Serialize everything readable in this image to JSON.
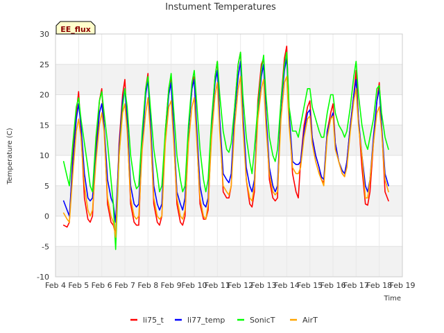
{
  "chart_data": {
    "type": "line",
    "title": "Instument Temperatures",
    "xlabel": "Time",
    "ylabel": "Temperature (C)",
    "badge": "EE_flux",
    "xlim": [
      4,
      19
    ],
    "ylim": [
      -10,
      30
    ],
    "x_ticks": [
      4,
      5,
      6,
      7,
      8,
      9,
      10,
      11,
      12,
      13,
      14,
      15,
      16,
      17,
      18,
      19
    ],
    "x_tick_labels": [
      "Feb 4",
      "Feb 5",
      "Feb 6",
      "Feb 7",
      "Feb 8",
      "Feb 9",
      "Feb 10",
      "Feb 11",
      "Feb 12",
      "Feb 13",
      "Feb 14",
      "Feb 15",
      "Feb 16",
      "Feb 17",
      "Feb 18",
      "Feb 19"
    ],
    "y_ticks": [
      -10,
      -5,
      0,
      5,
      10,
      15,
      20,
      25,
      30
    ],
    "y_tick_labels": [
      "-10",
      "-5",
      "0",
      "5",
      "10",
      "15",
      "20",
      "25",
      "30"
    ],
    "grid": true,
    "legend_position": "bottom",
    "series": [
      {
        "name": "li75_t",
        "color": "#ff0000",
        "x": [
          4.35,
          4.5,
          4.6,
          4.75,
          4.9,
          5.0,
          5.1,
          5.25,
          5.4,
          5.5,
          5.6,
          5.75,
          5.9,
          6.0,
          6.1,
          6.25,
          6.4,
          6.5,
          6.6,
          6.75,
          6.9,
          7.0,
          7.1,
          7.25,
          7.4,
          7.5,
          7.6,
          7.75,
          7.9,
          8.0,
          8.1,
          8.25,
          8.4,
          8.5,
          8.6,
          8.75,
          8.9,
          9.0,
          9.1,
          9.25,
          9.4,
          9.5,
          9.6,
          9.75,
          9.9,
          10.0,
          10.1,
          10.25,
          10.4,
          10.5,
          10.6,
          10.75,
          10.9,
          11.0,
          11.1,
          11.25,
          11.4,
          11.5,
          11.6,
          11.75,
          11.9,
          12.0,
          12.1,
          12.25,
          12.4,
          12.5,
          12.6,
          12.75,
          12.9,
          13.0,
          13.1,
          13.25,
          13.4,
          13.5,
          13.6,
          13.75,
          13.9,
          14.0,
          14.1,
          14.25,
          14.4,
          14.5,
          14.6,
          14.75,
          14.9,
          15.0,
          15.1,
          15.25,
          15.4,
          15.5,
          15.6,
          15.75,
          15.9,
          16.0,
          16.1,
          16.25,
          16.4,
          16.5,
          16.6,
          16.75,
          16.9,
          17.0,
          17.1,
          17.25,
          17.4,
          17.5,
          17.6,
          17.75,
          17.9,
          18.0,
          18.1,
          18.25,
          18.4
        ],
        "y": [
          -1.5,
          -1.8,
          -1,
          10,
          17,
          20.5,
          14,
          3,
          -0.5,
          -1,
          0,
          11,
          19,
          21,
          15,
          2,
          -1,
          -1.5,
          -3,
          12,
          20,
          22.5,
          15,
          2,
          -1,
          -1.5,
          -1.5,
          13,
          21,
          23.5,
          15,
          2,
          -1,
          -1.5,
          0,
          14,
          21,
          23,
          14,
          2,
          -1,
          -1.5,
          0,
          14,
          21,
          23,
          14,
          2,
          -0.5,
          -0.5,
          1,
          15,
          23,
          25.5,
          16,
          4,
          3,
          3,
          5,
          18,
          25,
          27,
          17,
          6,
          2,
          1.5,
          4,
          19,
          25,
          26,
          17,
          6,
          3,
          2.5,
          3,
          19,
          26,
          28,
          17,
          7,
          4,
          3,
          9,
          15,
          18,
          19,
          13,
          10,
          8,
          6,
          5.5,
          14,
          17,
          18.5,
          12,
          9,
          7,
          6.5,
          9,
          15,
          20,
          24,
          16,
          8,
          2,
          1.8,
          4,
          12,
          19,
          22,
          15,
          4,
          2.5
        ]
      },
      {
        "name": "li77_temp",
        "color": "#0000ff",
        "x": [
          4.35,
          4.5,
          4.6,
          4.75,
          4.9,
          5.0,
          5.1,
          5.25,
          5.4,
          5.5,
          5.6,
          5.75,
          5.9,
          6.0,
          6.1,
          6.25,
          6.4,
          6.5,
          6.6,
          6.75,
          6.9,
          7.0,
          7.1,
          7.25,
          7.4,
          7.5,
          7.6,
          7.75,
          7.9,
          8.0,
          8.1,
          8.25,
          8.4,
          8.5,
          8.6,
          8.75,
          8.9,
          9.0,
          9.1,
          9.25,
          9.4,
          9.5,
          9.6,
          9.75,
          9.9,
          10.0,
          10.1,
          10.25,
          10.4,
          10.5,
          10.6,
          10.75,
          10.9,
          11.0,
          11.1,
          11.25,
          11.4,
          11.5,
          11.6,
          11.75,
          11.9,
          12.0,
          12.1,
          12.25,
          12.4,
          12.5,
          12.6,
          12.75,
          12.9,
          13.0,
          13.1,
          13.25,
          13.4,
          13.5,
          13.6,
          13.75,
          13.9,
          14.0,
          14.1,
          14.25,
          14.4,
          14.5,
          14.6,
          14.75,
          14.9,
          15.0,
          15.1,
          15.25,
          15.4,
          15.5,
          15.6,
          15.75,
          15.9,
          16.0,
          16.1,
          16.25,
          16.4,
          16.5,
          16.6,
          16.75,
          16.9,
          17.0,
          17.1,
          17.25,
          17.4,
          17.5,
          17.6,
          17.75,
          17.9,
          18.0,
          18.1,
          18.25,
          18.4
        ],
        "y": [
          2.5,
          1,
          0,
          9,
          16,
          18.5,
          15,
          7,
          3,
          2.5,
          3,
          10,
          17,
          18.5,
          15,
          6,
          3,
          2,
          -1,
          11,
          19,
          21,
          16,
          5,
          2,
          1.5,
          2,
          12,
          20,
          22.5,
          16,
          5,
          2,
          1,
          2,
          13,
          20,
          22,
          15,
          4,
          2,
          1,
          3,
          14,
          21,
          22.5,
          15,
          5,
          2,
          1.5,
          3,
          15,
          22,
          24,
          16,
          7,
          6,
          5.5,
          7,
          17,
          23,
          25.5,
          17,
          8,
          5,
          4,
          6,
          17,
          23,
          25,
          17,
          8,
          5,
          4,
          5,
          18,
          24,
          26,
          17,
          9,
          8.5,
          8.5,
          9,
          14,
          17,
          17.5,
          13,
          10,
          8,
          6.5,
          6,
          14,
          16,
          17,
          12,
          9,
          7.5,
          7,
          9,
          15,
          20,
          22.5,
          16,
          10,
          5,
          4,
          6,
          13,
          19,
          21,
          15,
          7,
          5
        ]
      },
      {
        "name": "SonicT",
        "color": "#00ff00",
        "x": [
          4.35,
          4.5,
          4.6,
          4.75,
          4.9,
          5.0,
          5.1,
          5.25,
          5.4,
          5.5,
          5.6,
          5.75,
          5.9,
          6.0,
          6.1,
          6.25,
          6.4,
          6.5,
          6.6,
          6.75,
          6.9,
          7.0,
          7.1,
          7.25,
          7.4,
          7.5,
          7.6,
          7.75,
          7.9,
          8.0,
          8.1,
          8.25,
          8.4,
          8.5,
          8.6,
          8.75,
          8.9,
          9.0,
          9.1,
          9.25,
          9.4,
          9.5,
          9.6,
          9.75,
          9.9,
          10.0,
          10.1,
          10.25,
          10.4,
          10.5,
          10.6,
          10.75,
          10.9,
          11.0,
          11.1,
          11.25,
          11.4,
          11.5,
          11.6,
          11.75,
          11.9,
          12.0,
          12.1,
          12.25,
          12.4,
          12.5,
          12.6,
          12.75,
          12.9,
          13.0,
          13.1,
          13.25,
          13.4,
          13.5,
          13.6,
          13.75,
          13.9,
          14.0,
          14.1,
          14.25,
          14.4,
          14.5,
          14.6,
          14.75,
          14.9,
          15.0,
          15.1,
          15.25,
          15.4,
          15.5,
          15.6,
          15.75,
          15.9,
          16.0,
          16.1,
          16.25,
          16.4,
          16.5,
          16.6,
          16.75,
          16.9,
          17.0,
          17.1,
          17.25,
          17.4,
          17.5,
          17.6,
          17.75,
          17.9,
          18.0,
          18.1,
          18.25,
          18.4
        ],
        "y": [
          9,
          6.5,
          5,
          12,
          18,
          19.5,
          16,
          12,
          8,
          5,
          4,
          13,
          19,
          20.5,
          17,
          12,
          6,
          2,
          -5.5,
          10,
          18,
          21,
          18,
          10,
          6,
          4.5,
          5,
          14,
          21,
          23,
          18,
          11,
          7,
          4,
          5,
          14,
          21,
          23.5,
          18,
          10,
          6,
          4,
          5,
          15,
          22,
          24,
          19,
          11,
          6,
          4,
          6,
          16,
          23,
          25.5,
          20,
          14,
          11,
          10.5,
          12,
          18,
          25,
          27,
          20,
          13,
          9,
          7,
          11,
          18,
          24,
          26.5,
          20,
          13,
          10,
          9,
          11,
          19,
          25,
          27,
          18,
          14,
          14,
          13,
          15,
          18,
          21,
          21,
          18,
          16,
          14,
          13,
          13,
          17,
          20,
          20,
          17,
          15,
          14,
          13,
          14,
          18,
          23,
          25.5,
          20,
          15,
          12,
          11,
          13,
          16,
          21,
          21.5,
          17,
          13,
          11
        ]
      },
      {
        "name": "AirT",
        "color": "#ffa500",
        "x": [
          4.35,
          4.5,
          4.6,
          4.75,
          4.9,
          5.0,
          5.1,
          5.25,
          5.4,
          5.5,
          5.6,
          5.75,
          5.9,
          6.0,
          6.1,
          6.25,
          6.4,
          6.5,
          6.6,
          6.75,
          6.9,
          7.0,
          7.1,
          7.25,
          7.4,
          7.5,
          7.6,
          7.75,
          7.9,
          8.0,
          8.1,
          8.25,
          8.4,
          8.5,
          8.6,
          8.75,
          8.9,
          9.0,
          9.1,
          9.25,
          9.4,
          9.5,
          9.6,
          9.75,
          9.9,
          10.0,
          10.1,
          10.25,
          10.4,
          10.5,
          10.6,
          10.75,
          10.9,
          11.0,
          11.1,
          11.25,
          11.4,
          11.5,
          11.6,
          11.75,
          11.9,
          12.0,
          12.1,
          12.25,
          12.4,
          12.5,
          12.6,
          12.75,
          12.9,
          13.0,
          13.1,
          13.25,
          13.4,
          13.5,
          13.6,
          13.75,
          13.9,
          14.0,
          14.1,
          14.25,
          14.4,
          14.5,
          14.6,
          14.75,
          14.9,
          15.0,
          15.1,
          15.25,
          15.4,
          15.5,
          15.6,
          15.75,
          15.9,
          16.0,
          16.1,
          16.25,
          16.4,
          16.5,
          16.6,
          16.75,
          16.9,
          17.0,
          17.1,
          17.25,
          17.4,
          17.5,
          17.6,
          17.75,
          17.9,
          18.0,
          18.1,
          18.25,
          18.4
        ],
        "y": [
          0.5,
          -0.5,
          -1,
          7,
          14,
          16,
          13,
          5,
          1,
          0,
          1,
          9,
          15,
          17,
          14,
          3,
          0,
          -1,
          -3.5,
          10,
          17,
          18.5,
          14,
          3,
          0,
          -0.5,
          0,
          11,
          17,
          19.5,
          14,
          3,
          0,
          -0.5,
          0,
          12,
          18,
          19,
          13,
          3,
          0,
          -0.5,
          1,
          12,
          18,
          19.5,
          13,
          3,
          0,
          -0.5,
          2,
          13,
          20,
          22,
          14,
          5,
          4,
          3.5,
          5,
          15,
          21,
          23,
          15,
          6,
          3,
          2.5,
          5,
          16,
          21,
          22.5,
          15,
          7,
          4,
          3.5,
          4,
          16,
          22,
          23,
          15,
          8,
          7,
          7,
          8,
          13,
          16,
          16.5,
          12,
          9,
          7,
          6,
          5,
          13,
          16,
          16.5,
          11,
          9,
          7,
          6.5,
          8,
          14,
          19,
          21,
          15,
          10,
          3,
          3,
          6,
          12,
          17,
          18,
          14,
          6,
          4
        ]
      }
    ]
  }
}
